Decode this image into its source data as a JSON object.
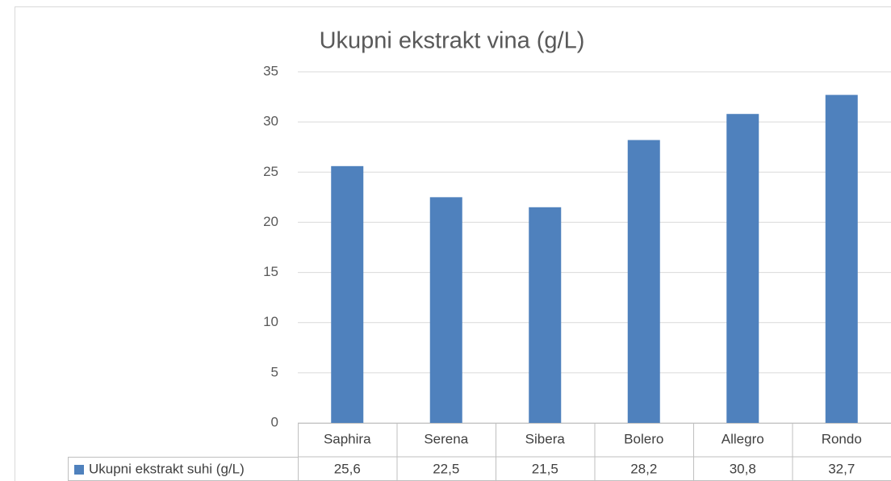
{
  "chart_data": {
    "type": "bar",
    "title": "Ukupni ekstrakt vina (g/L)",
    "categories": [
      "Saphira",
      "Serena",
      "Sibera",
      "Bolero",
      "Allegro",
      "Rondo"
    ],
    "series": [
      {
        "name": "Ukupni ekstrakt suhi (g/L)",
        "color": "#4f81bd",
        "values": [
          25.6,
          22.5,
          21.5,
          28.2,
          30.8,
          32.7
        ],
        "value_labels": [
          "25,6",
          "22,5",
          "21,5",
          "28,2",
          "30,8",
          "32,7"
        ]
      }
    ],
    "ylim": [
      0,
      35
    ],
    "yticks": [
      0,
      5,
      10,
      15,
      20,
      25,
      30,
      35
    ],
    "grid": true
  }
}
